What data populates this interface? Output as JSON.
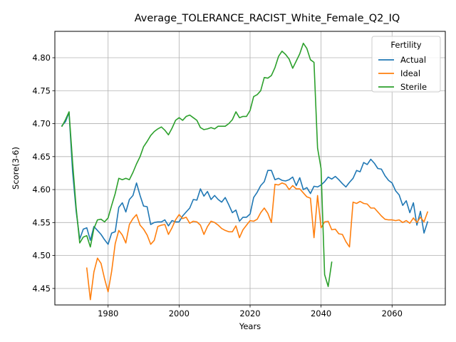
{
  "chart_data": {
    "type": "line",
    "title": "Average_TOLERANCE_RACIST_White_Female_Q2_IQ",
    "xlabel": "Years",
    "ylabel": "Score(3-6)",
    "xlim": [
      1965,
      2075
    ],
    "ylim": [
      4.425,
      4.84
    ],
    "xticks": [
      1980,
      2000,
      2020,
      2040,
      2060
    ],
    "yticks": [
      4.45,
      4.5,
      4.55,
      4.6,
      4.65,
      4.7,
      4.75,
      4.8
    ],
    "xtick_labels": [
      "1980",
      "2000",
      "2020",
      "2040",
      "2060"
    ],
    "ytick_labels": [
      "4.45",
      "4.50",
      "4.55",
      "4.60",
      "4.65",
      "4.70",
      "4.75",
      "4.80"
    ],
    "grid": true,
    "legend": {
      "title": "Fertility",
      "position": "top-right"
    },
    "series": [
      {
        "name": "Actual",
        "color": "#1f77b4",
        "x": [
          1967,
          1968,
          1969,
          1970,
          1971,
          1972,
          1973,
          1974,
          1975,
          1976,
          1977,
          1978,
          1979,
          1980,
          1981,
          1982,
          1983,
          1984,
          1985,
          1986,
          1987,
          1988,
          1989,
          1990,
          1991,
          1992,
          1993,
          1994,
          1995,
          1996,
          1997,
          1998,
          1999,
          2000,
          2001,
          2002,
          2003,
          2004,
          2005,
          2006,
          2007,
          2008,
          2009,
          2010,
          2011,
          2012,
          2013,
          2014,
          2015,
          2016,
          2017,
          2018,
          2019,
          2020,
          2021,
          2022,
          2023,
          2024,
          2025,
          2026,
          2027,
          2028,
          2029,
          2030,
          2031,
          2032,
          2033,
          2034,
          2035,
          2036,
          2037,
          2038,
          2039,
          2040,
          2041,
          2042,
          2043,
          2044,
          2045,
          2046,
          2047,
          2048,
          2049,
          2050,
          2051,
          2052,
          2053,
          2054,
          2055,
          2056,
          2057,
          2058,
          2059,
          2060,
          2061,
          2062,
          2063,
          2064,
          2065,
          2066,
          2067,
          2068,
          2069,
          2070
        ],
        "values": [
          4.697,
          4.703,
          4.717,
          4.627,
          4.567,
          4.525,
          4.54,
          4.542,
          4.523,
          4.544,
          4.538,
          4.532,
          4.524,
          4.517,
          4.534,
          4.536,
          4.573,
          4.58,
          4.566,
          4.585,
          4.591,
          4.61,
          4.591,
          4.575,
          4.574,
          4.547,
          4.55,
          4.551,
          4.551,
          4.554,
          4.545,
          4.553,
          4.551,
          4.551,
          4.56,
          4.566,
          4.572,
          4.585,
          4.584,
          4.601,
          4.59,
          4.597,
          4.585,
          4.591,
          4.585,
          4.581,
          4.588,
          4.577,
          4.565,
          4.569,
          4.552,
          4.558,
          4.558,
          4.563,
          4.588,
          4.596,
          4.606,
          4.612,
          4.629,
          4.629,
          4.615,
          4.617,
          4.614,
          4.613,
          4.615,
          4.619,
          4.606,
          4.618,
          4.6,
          4.603,
          4.594,
          4.605,
          4.604,
          4.607,
          4.612,
          4.619,
          4.616,
          4.62,
          4.615,
          4.609,
          4.604,
          4.611,
          4.617,
          4.629,
          4.627,
          4.641,
          4.638,
          4.646,
          4.64,
          4.632,
          4.631,
          4.621,
          4.614,
          4.61,
          4.598,
          4.592,
          4.576,
          4.583,
          4.565,
          4.58,
          4.546,
          4.567,
          4.534,
          4.551
        ]
      },
      {
        "name": "Ideal",
        "color": "#ff7f0e",
        "x": [
          1974,
          1975,
          1976,
          1977,
          1978,
          1979,
          1980,
          1981,
          1982,
          1983,
          1984,
          1985,
          1986,
          1987,
          1988,
          1989,
          1990,
          1991,
          1992,
          1993,
          1994,
          1995,
          1996,
          1997,
          1998,
          1999,
          2000,
          2001,
          2002,
          2003,
          2004,
          2005,
          2006,
          2007,
          2008,
          2009,
          2010,
          2011,
          2012,
          2013,
          2014,
          2015,
          2016,
          2017,
          2018,
          2019,
          2020,
          2021,
          2022,
          2023,
          2024,
          2025,
          2026,
          2027,
          2028,
          2029,
          2030,
          2031,
          2032,
          2033,
          2034,
          2035,
          2036,
          2037,
          2038,
          2039,
          2040,
          2041,
          2042,
          2043,
          2044,
          2045,
          2046,
          2047,
          2048,
          2049,
          2050,
          2051,
          2052,
          2053,
          2054,
          2055,
          2056,
          2057,
          2058,
          2059,
          2060,
          2061,
          2062,
          2063,
          2064,
          2065,
          2066,
          2067,
          2068,
          2069,
          2070
        ],
        "values": [
          4.481,
          4.433,
          4.475,
          4.496,
          4.488,
          4.465,
          4.445,
          4.476,
          4.518,
          4.538,
          4.531,
          4.519,
          4.547,
          4.556,
          4.562,
          4.546,
          4.54,
          4.531,
          4.517,
          4.523,
          4.544,
          4.546,
          4.547,
          4.532,
          4.542,
          4.554,
          4.562,
          4.556,
          4.558,
          4.549,
          4.552,
          4.551,
          4.546,
          4.532,
          4.544,
          4.552,
          4.55,
          4.546,
          4.541,
          4.538,
          4.536,
          4.536,
          4.545,
          4.527,
          4.539,
          4.546,
          4.553,
          4.552,
          4.555,
          4.565,
          4.572,
          4.564,
          4.55,
          4.608,
          4.607,
          4.61,
          4.608,
          4.6,
          4.606,
          4.601,
          4.601,
          4.595,
          4.589,
          4.587,
          4.527,
          4.591,
          4.542,
          4.551,
          4.552,
          4.539,
          4.54,
          4.533,
          4.532,
          4.521,
          4.513,
          4.581,
          4.579,
          4.582,
          4.579,
          4.578,
          4.572,
          4.572,
          4.566,
          4.56,
          4.555,
          4.554,
          4.554,
          4.553,
          4.554,
          4.55,
          4.553,
          4.549,
          4.557,
          4.55,
          4.558,
          4.551,
          4.566
        ]
      },
      {
        "name": "Sterile",
        "color": "#2ca02c",
        "x": [
          1967,
          1968,
          1969,
          1970,
          1971,
          1972,
          1973,
          1974,
          1975,
          1976,
          1977,
          1978,
          1979,
          1980,
          1981,
          1982,
          1983,
          1984,
          1985,
          1986,
          1987,
          1988,
          1989,
          1990,
          1991,
          1992,
          1993,
          1994,
          1995,
          1996,
          1997,
          1998,
          1999,
          2000,
          2001,
          2002,
          2003,
          2004,
          2005,
          2006,
          2007,
          2008,
          2009,
          2010,
          2011,
          2012,
          2013,
          2014,
          2015,
          2016,
          2017,
          2018,
          2019,
          2020,
          2021,
          2022,
          2023,
          2024,
          2025,
          2026,
          2027,
          2028,
          2029,
          2030,
          2031,
          2032,
          2033,
          2034,
          2035,
          2036,
          2037,
          2038,
          2039,
          2040,
          2041,
          2042,
          2043
        ],
        "values": [
          4.696,
          4.706,
          4.718,
          4.641,
          4.572,
          4.519,
          4.528,
          4.53,
          4.513,
          4.541,
          4.554,
          4.555,
          4.551,
          4.557,
          4.576,
          4.594,
          4.617,
          4.615,
          4.617,
          4.615,
          4.626,
          4.639,
          4.65,
          4.665,
          4.673,
          4.682,
          4.688,
          4.692,
          4.695,
          4.69,
          4.683,
          4.693,
          4.705,
          4.709,
          4.705,
          4.711,
          4.713,
          4.709,
          4.705,
          4.694,
          4.691,
          4.692,
          4.694,
          4.692,
          4.696,
          4.696,
          4.696,
          4.7,
          4.706,
          4.718,
          4.709,
          4.711,
          4.711,
          4.72,
          4.741,
          4.744,
          4.75,
          4.77,
          4.769,
          4.773,
          4.785,
          4.802,
          4.81,
          4.805,
          4.798,
          4.784,
          4.795,
          4.806,
          4.822,
          4.814,
          4.797,
          4.793,
          4.663,
          4.632,
          4.471,
          4.453,
          4.49
        ]
      }
    ]
  }
}
